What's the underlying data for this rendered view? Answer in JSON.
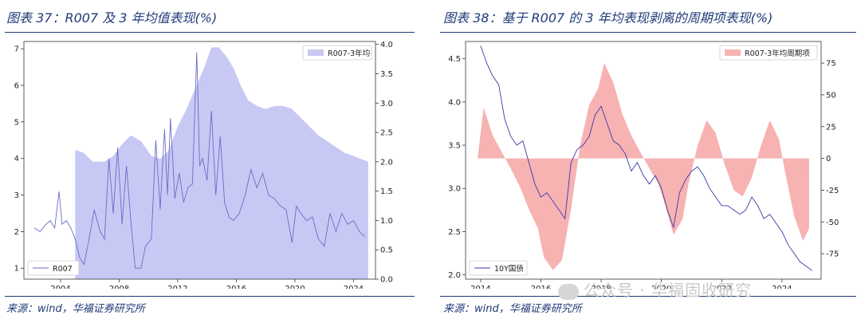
{
  "left": {
    "title": "图表 37：R007 及 3 年均值表现(%)",
    "source": "来源：wind，华福证券研究所",
    "chart_data": {
      "type": "line",
      "x_ticks": [
        "2004",
        "2008",
        "2012",
        "2016",
        "2020",
        "2024"
      ],
      "y_left_ticks": [
        "1",
        "2",
        "3",
        "4",
        "5",
        "6",
        "7"
      ],
      "y_left_lim": [
        0.7,
        7.2
      ],
      "y_right_ticks": [
        "0.0",
        "0.5",
        "1.0",
        "1.5",
        "2.0",
        "2.5",
        "3.0",
        "3.5",
        "4.0"
      ],
      "y_right_lim": [
        0.0,
        4.05
      ],
      "x_lim": [
        2001.5,
        2025.5
      ],
      "legend_position_area": "top-right",
      "legend_position_line": "bottom-left",
      "series": [
        {
          "name": "R007-3年均",
          "kind": "area",
          "axis": "right",
          "color": "#c8c8f5",
          "x": [
            2005.0,
            2005.6,
            2006.2,
            2007.0,
            2007.6,
            2008.2,
            2008.8,
            2009.5,
            2010.2,
            2010.8,
            2011.4,
            2012.0,
            2012.6,
            2013.2,
            2013.8,
            2014.3,
            2014.8,
            2015.3,
            2015.8,
            2016.3,
            2016.8,
            2017.4,
            2018.0,
            2018.6,
            2019.2,
            2019.8,
            2020.4,
            2021.0,
            2021.6,
            2022.2,
            2022.8,
            2023.4,
            2024.0,
            2024.5,
            2025.0
          ],
          "values": [
            2.2,
            2.15,
            2.0,
            2.0,
            2.1,
            2.3,
            2.45,
            2.35,
            2.1,
            2.05,
            2.2,
            2.6,
            2.9,
            3.25,
            3.6,
            3.95,
            3.95,
            3.8,
            3.6,
            3.3,
            3.05,
            2.95,
            2.9,
            2.95,
            2.95,
            2.9,
            2.75,
            2.6,
            2.45,
            2.35,
            2.25,
            2.15,
            2.1,
            2.05,
            2.0
          ]
        },
        {
          "name": "R007",
          "kind": "line",
          "axis": "left",
          "color": "#6b6bc8",
          "x": [
            2002.2,
            2002.6,
            2003.0,
            2003.3,
            2003.6,
            2003.9,
            2004.1,
            2004.4,
            2004.7,
            2005.0,
            2005.3,
            2005.6,
            2005.9,
            2006.3,
            2006.7,
            2007.0,
            2007.3,
            2007.6,
            2007.9,
            2008.2,
            2008.5,
            2008.8,
            2009.1,
            2009.5,
            2009.8,
            2010.2,
            2010.5,
            2010.8,
            2011.1,
            2011.3,
            2011.5,
            2011.8,
            2012.1,
            2012.4,
            2012.7,
            2013.0,
            2013.3,
            2013.5,
            2013.7,
            2014.0,
            2014.3,
            2014.6,
            2014.9,
            2015.2,
            2015.5,
            2015.8,
            2016.2,
            2016.6,
            2017.0,
            2017.4,
            2017.8,
            2018.2,
            2018.6,
            2019.0,
            2019.4,
            2019.8,
            2020.1,
            2020.4,
            2020.8,
            2021.2,
            2021.6,
            2022.0,
            2022.4,
            2022.8,
            2023.2,
            2023.6,
            2024.0,
            2024.4,
            2024.8
          ],
          "values": [
            2.1,
            2.0,
            2.2,
            2.3,
            2.1,
            3.1,
            2.2,
            2.3,
            2.1,
            1.8,
            1.3,
            1.1,
            1.7,
            2.6,
            2.0,
            1.8,
            4.0,
            2.5,
            4.3,
            2.2,
            3.8,
            2.3,
            1.0,
            1.0,
            1.6,
            1.8,
            4.5,
            2.6,
            4.8,
            3.0,
            5.1,
            2.9,
            3.6,
            2.8,
            3.2,
            3.3,
            6.9,
            3.8,
            4.0,
            3.4,
            5.3,
            3.0,
            4.6,
            2.8,
            2.4,
            2.3,
            2.5,
            3.0,
            3.7,
            3.2,
            3.6,
            3.0,
            2.9,
            2.7,
            2.6,
            1.7,
            2.7,
            2.5,
            2.3,
            2.4,
            1.8,
            1.6,
            2.5,
            2.0,
            2.5,
            2.2,
            2.3,
            2.0,
            1.85
          ]
        }
      ]
    }
  },
  "right": {
    "title": "图表 38：基于 R007 的 3 年均表现剥离的周期项表现(%)",
    "source": "来源：wind，华福证券研究所",
    "chart_data": {
      "type": "line",
      "x_ticks": [
        "2014",
        "2016",
        "2018",
        "2020",
        "2022",
        "2024"
      ],
      "y_left_ticks": [
        "2.0",
        "2.5",
        "3.0",
        "3.5",
        "4.0",
        "4.5"
      ],
      "y_left_lim": [
        1.95,
        4.7
      ],
      "y_right_ticks": [
        "75",
        "50",
        "25",
        "0",
        "-25",
        "-50",
        "-75"
      ],
      "y_right_lim": [
        -95,
        92
      ],
      "x_lim": [
        2013.5,
        2025.3
      ],
      "legend_position_area": "top-right",
      "legend_position_line": "bottom-left",
      "series": [
        {
          "name": "R007-3年均周期项",
          "kind": "area",
          "axis": "right",
          "color": "#f7b2b2",
          "x": [
            2013.9,
            2014.1,
            2014.4,
            2014.7,
            2015.0,
            2015.3,
            2015.6,
            2015.9,
            2016.1,
            2016.4,
            2016.7,
            2017.0,
            2017.3,
            2017.6,
            2017.9,
            2018.1,
            2018.4,
            2018.7,
            2019.0,
            2019.3,
            2019.6,
            2019.9,
            2020.1,
            2020.4,
            2020.7,
            2020.9,
            2021.2,
            2021.5,
            2021.8,
            2022.1,
            2022.4,
            2022.7,
            2023.0,
            2023.3,
            2023.6,
            2023.9,
            2024.1,
            2024.4,
            2024.7,
            2024.9
          ],
          "values": [
            0,
            40,
            18,
            5,
            -8,
            -22,
            -40,
            -55,
            -78,
            -88,
            -80,
            -40,
            10,
            42,
            55,
            75,
            60,
            35,
            18,
            5,
            -8,
            -20,
            -35,
            -60,
            -48,
            -20,
            10,
            30,
            20,
            -5,
            -25,
            -30,
            -15,
            10,
            30,
            15,
            -10,
            -45,
            -65,
            -55
          ]
        },
        {
          "name": "10Y国债",
          "kind": "line",
          "axis": "left",
          "color": "#3a3aa8",
          "x": [
            2014.0,
            2014.2,
            2014.4,
            2014.6,
            2014.8,
            2015.0,
            2015.2,
            2015.4,
            2015.6,
            2015.8,
            2016.0,
            2016.2,
            2016.4,
            2016.6,
            2016.8,
            2017.0,
            2017.2,
            2017.4,
            2017.6,
            2017.8,
            2018.0,
            2018.2,
            2018.4,
            2018.6,
            2018.8,
            2019.0,
            2019.2,
            2019.4,
            2019.6,
            2019.8,
            2020.0,
            2020.2,
            2020.4,
            2020.6,
            2020.8,
            2021.0,
            2021.2,
            2021.4,
            2021.6,
            2021.8,
            2022.0,
            2022.2,
            2022.4,
            2022.6,
            2022.8,
            2023.0,
            2023.2,
            2023.4,
            2023.6,
            2023.8,
            2024.0,
            2024.2,
            2024.4,
            2024.6,
            2024.8,
            2025.0
          ],
          "values": [
            4.65,
            4.45,
            4.3,
            4.2,
            3.8,
            3.6,
            3.5,
            3.55,
            3.3,
            3.05,
            2.9,
            2.95,
            2.85,
            2.75,
            2.65,
            3.3,
            3.45,
            3.5,
            3.6,
            3.85,
            3.95,
            3.75,
            3.55,
            3.5,
            3.4,
            3.2,
            3.3,
            3.15,
            3.05,
            3.15,
            3.0,
            2.75,
            2.55,
            2.95,
            3.1,
            3.2,
            3.25,
            3.15,
            3.0,
            2.9,
            2.8,
            2.8,
            2.75,
            2.7,
            2.75,
            2.9,
            2.8,
            2.65,
            2.7,
            2.6,
            2.5,
            2.35,
            2.25,
            2.15,
            2.1,
            2.05
          ]
        }
      ]
    }
  },
  "watermark": "公众号 · 华福固收研究"
}
